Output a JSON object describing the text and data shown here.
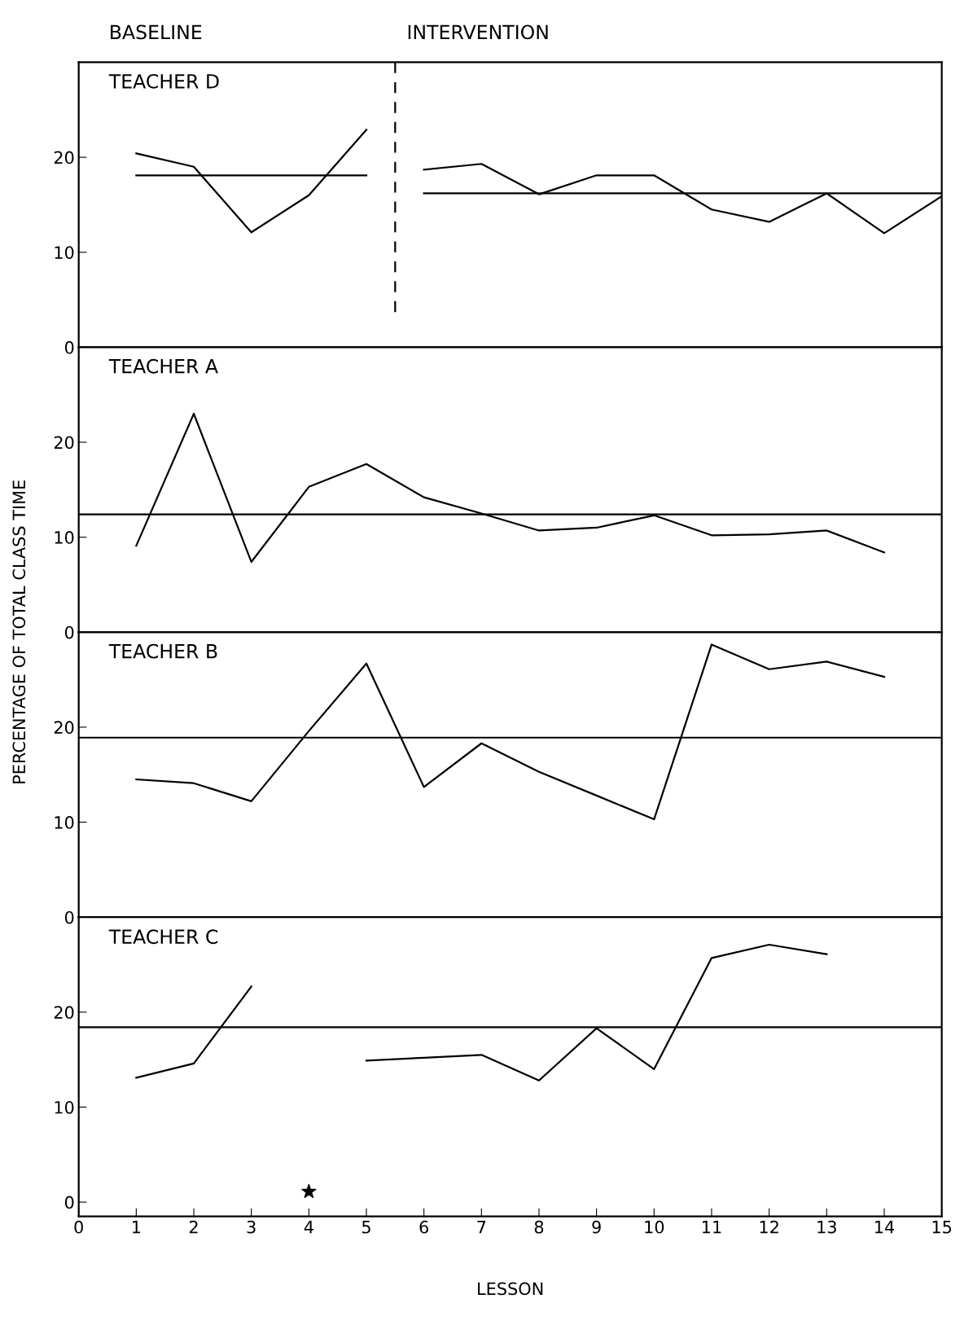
{
  "chart_data": [
    {
      "type": "line",
      "title": "TEACHER D",
      "annotations": [
        "BASELINE",
        "INTERVENTION"
      ],
      "xlim": [
        0,
        15
      ],
      "ylim": [
        0,
        30
      ],
      "yticks": [
        0,
        10,
        20
      ],
      "tick_labels": "y",
      "grid": false,
      "legend": false,
      "marker": "none",
      "series": [
        {
          "x": [
            1,
            2,
            3,
            4,
            5
          ],
          "values": [
            20.4,
            19.0,
            12.1,
            16.0,
            22.9
          ],
          "color": "#000000"
        },
        {
          "x": [
            6,
            7,
            8,
            9,
            10,
            11,
            12,
            13,
            14,
            15
          ],
          "values": [
            18.7,
            19.3,
            16.1,
            18.1,
            18.1,
            14.5,
            13.2,
            16.2,
            12.0,
            15.9
          ],
          "color": "#000000"
        },
        {
          "x": [
            1,
            5
          ],
          "values": [
            18.1,
            18.1
          ],
          "color": "#000000"
        },
        {
          "x": [
            6,
            15
          ],
          "values": [
            16.2,
            16.2
          ],
          "color": "#000000"
        },
        {
          "x": [
            5.5,
            5.5
          ],
          "values": [
            30,
            3.6
          ],
          "color": "#000000",
          "line_style": "dashed"
        }
      ]
    },
    {
      "type": "line",
      "title": "TEACHER A",
      "xlim": [
        0,
        15
      ],
      "ylim": [
        0,
        30
      ],
      "yticks": [
        0,
        10,
        20
      ],
      "tick_labels": "y",
      "grid": false,
      "legend": false,
      "marker": "none",
      "ref_lines": [
        {
          "axis": "y",
          "value": 12.4,
          "color": "#000000"
        }
      ],
      "series": [
        {
          "x": [
            1,
            2,
            3,
            4,
            5,
            6,
            7,
            8,
            9,
            10,
            11,
            12,
            13,
            14
          ],
          "values": [
            9.1,
            23.0,
            7.4,
            15.3,
            17.7,
            14.2,
            12.5,
            10.7,
            11.0,
            12.3,
            10.2,
            10.3,
            10.7,
            8.4
          ],
          "color": "#000000"
        }
      ]
    },
    {
      "type": "line",
      "title": "TEACHER B",
      "ylabel": "PERCENTAGE OF TOTAL CLASS TIME",
      "xlim": [
        0,
        15
      ],
      "ylim": [
        0,
        30
      ],
      "yticks": [
        0,
        10,
        20
      ],
      "tick_labels": "y",
      "grid": false,
      "legend": false,
      "marker": "none",
      "ref_lines": [
        {
          "axis": "y",
          "value": 18.9,
          "color": "#000000"
        }
      ],
      "series": [
        {
          "x": [
            1,
            2,
            3,
            4,
            5,
            6,
            7,
            8,
            9,
            10,
            11,
            12,
            13,
            14
          ],
          "values": [
            14.5,
            14.1,
            12.2,
            19.6,
            26.7,
            13.7,
            18.3,
            15.3,
            12.8,
            10.3,
            28.7,
            26.1,
            26.9,
            25.3
          ],
          "color": "#000000"
        }
      ]
    },
    {
      "type": "line",
      "title": "TEACHER C",
      "xlabel": "LESSON",
      "xlim": [
        0,
        15
      ],
      "xticks": [
        0,
        1,
        2,
        3,
        4,
        5,
        6,
        7,
        8,
        9,
        10,
        11,
        12,
        13,
        14,
        15
      ],
      "ylim": [
        -1.5,
        30
      ],
      "yticks": [
        0,
        10,
        20
      ],
      "grid": false,
      "legend": false,
      "marker": "none",
      "ref_lines": [
        {
          "axis": "y",
          "value": 18.4,
          "color": "#000000"
        }
      ],
      "series": [
        {
          "x": [
            1,
            2,
            3,
            4,
            5,
            6,
            7,
            8,
            9,
            10,
            11,
            12,
            13
          ],
          "values": [
            13.1,
            14.6,
            22.7,
            null,
            14.9,
            15.2,
            15.5,
            12.8,
            18.3,
            14.0,
            25.7,
            27.1,
            26.1
          ],
          "color": "#000000"
        },
        {
          "type": "scatter",
          "x": [
            4
          ],
          "values": [
            1.1
          ],
          "color": "#000000",
          "marker": "star"
        }
      ]
    }
  ]
}
